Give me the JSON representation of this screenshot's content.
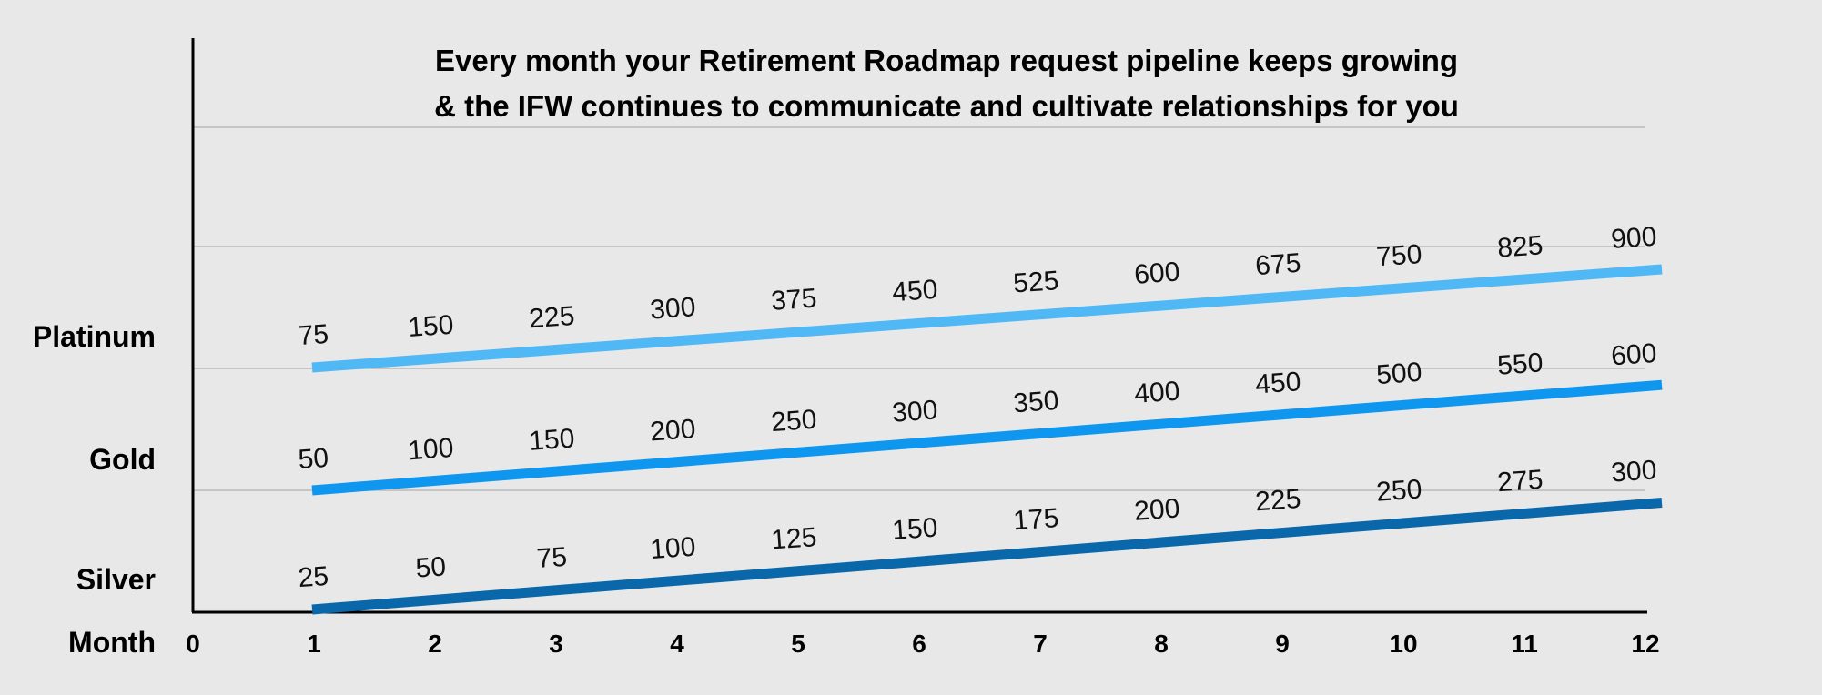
{
  "chart_data": {
    "type": "line",
    "title_lines": [
      "Every month your Retirement Roadmap request pipeline keeps growing",
      "& the IFW continues to communicate and cultivate relationships for you"
    ],
    "xlabel": "Month",
    "x_ticks": [
      0,
      1,
      2,
      3,
      4,
      5,
      6,
      7,
      8,
      9,
      10,
      11,
      12
    ],
    "y_category_labels": [
      "Platinum",
      "Gold",
      "Silver"
    ],
    "grid": true,
    "x": [
      1,
      2,
      3,
      4,
      5,
      6,
      7,
      8,
      9,
      10,
      11,
      12
    ],
    "series": [
      {
        "name": "Platinum",
        "color": "#4fb8f5",
        "values": [
          75,
          150,
          225,
          300,
          375,
          450,
          525,
          600,
          675,
          750,
          825,
          900
        ]
      },
      {
        "name": "Gold",
        "color": "#0f97f0",
        "values": [
          50,
          100,
          150,
          200,
          250,
          300,
          350,
          400,
          450,
          500,
          550,
          600
        ]
      },
      {
        "name": "Silver",
        "color": "#0a68aa",
        "values": [
          25,
          50,
          75,
          100,
          125,
          150,
          175,
          200,
          225,
          250,
          275,
          300
        ]
      }
    ]
  }
}
